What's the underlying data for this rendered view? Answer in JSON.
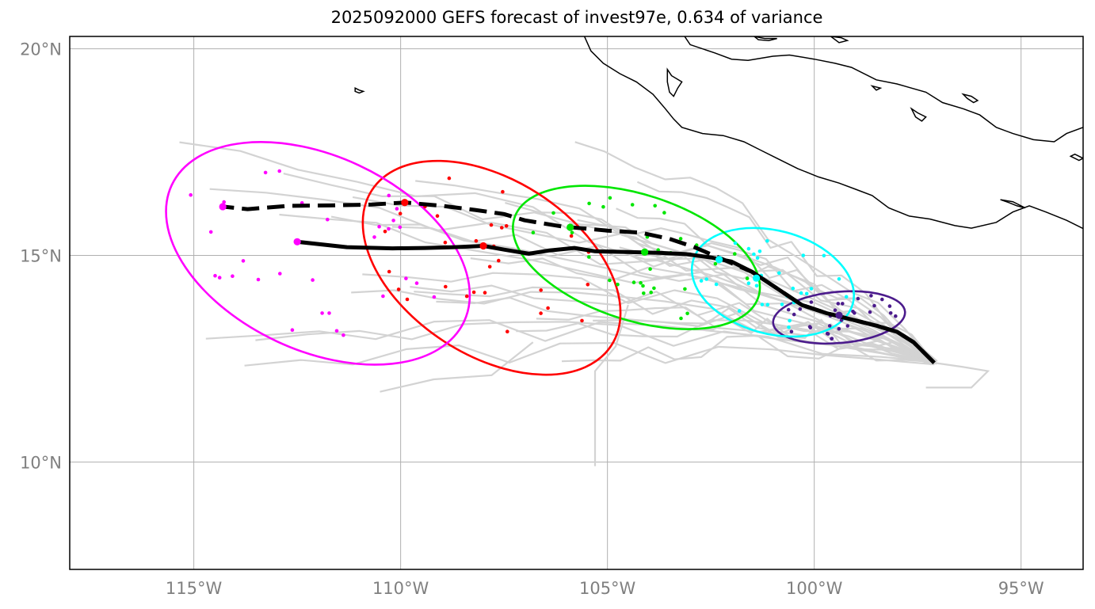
{
  "title": "2025092000 GEFS forecast of invest97e, 0.634 of variance",
  "map": {
    "lon_range": [
      -118,
      -93.5
    ],
    "lat_range": [
      7.4,
      20.3
    ],
    "x_ticks": [
      {
        "value": -115,
        "label": "115°W"
      },
      {
        "value": -110,
        "label": "110°W"
      },
      {
        "value": -105,
        "label": "105°W"
      },
      {
        "value": -100,
        "label": "100°W"
      },
      {
        "value": -95,
        "label": "95°W"
      }
    ],
    "y_ticks": [
      {
        "value": 20,
        "label": "20°N"
      },
      {
        "value": 15,
        "label": "15°N"
      },
      {
        "value": 10,
        "label": "10°N"
      }
    ],
    "grid": true
  },
  "colors": {
    "ensemble": "#d3d3d3",
    "mean_track": "#000000",
    "coast": "#000000",
    "grid": "#b0b0b0",
    "t1": "#4b1b8c",
    "t2": "#00ffff",
    "t3": "#00e600",
    "t4": "#ff0000",
    "t5": "#ff00ff"
  },
  "tracks": {
    "solid_mean": [
      [
        -97.1,
        12.4
      ],
      [
        -97.6,
        12.9
      ],
      [
        -98.0,
        13.15
      ],
      [
        -98.5,
        13.3
      ],
      [
        -99.1,
        13.45
      ],
      [
        -99.7,
        13.6
      ],
      [
        -100.3,
        13.8
      ],
      [
        -100.9,
        14.2
      ],
      [
        -101.5,
        14.6
      ],
      [
        -102.0,
        14.85
      ],
      [
        -102.5,
        14.95
      ],
      [
        -103.1,
        15.03
      ],
      [
        -103.7,
        15.06
      ],
      [
        -104.5,
        15.08
      ],
      [
        -105.3,
        15.1
      ],
      [
        -105.8,
        15.18
      ],
      [
        -106.4,
        15.12
      ],
      [
        -106.9,
        15.04
      ],
      [
        -107.5,
        15.14
      ],
      [
        -108.0,
        15.23
      ],
      [
        -108.7,
        15.2
      ],
      [
        -109.4,
        15.18
      ],
      [
        -110.2,
        15.17
      ],
      [
        -111.3,
        15.2
      ],
      [
        -112.5,
        15.33
      ]
    ],
    "dashed_mean": [
      [
        -97.1,
        12.4
      ],
      [
        -97.6,
        12.9
      ],
      [
        -98.0,
        13.15
      ],
      [
        -98.5,
        13.3
      ],
      [
        -99.1,
        13.45
      ],
      [
        -99.7,
        13.6
      ],
      [
        -100.3,
        13.8
      ],
      [
        -100.9,
        14.2
      ],
      [
        -101.5,
        14.6
      ],
      [
        -102.2,
        14.9
      ],
      [
        -102.9,
        15.2
      ],
      [
        -103.5,
        15.4
      ],
      [
        -104.2,
        15.55
      ],
      [
        -105.0,
        15.6
      ],
      [
        -106.1,
        15.7
      ],
      [
        -107.0,
        15.85
      ],
      [
        -107.5,
        16.0
      ],
      [
        -108.2,
        16.1
      ],
      [
        -109.0,
        16.2
      ],
      [
        -109.9,
        16.28
      ],
      [
        -110.7,
        16.23
      ],
      [
        -111.7,
        16.21
      ],
      [
        -112.7,
        16.2
      ],
      [
        -113.7,
        16.12
      ],
      [
        -114.3,
        16.18
      ]
    ]
  },
  "ellipses": [
    {
      "name": "t1",
      "lon": -99.4,
      "lat": 13.5,
      "rx_deg": 1.6,
      "ry_deg": 0.62,
      "angle": -5
    },
    {
      "name": "t2",
      "lon": -101.0,
      "lat": 14.35,
      "rx_deg": 2.0,
      "ry_deg": 1.25,
      "angle": 15
    },
    {
      "name": "t3",
      "lon": -104.3,
      "lat": 14.95,
      "rx_deg": 3.1,
      "ry_deg": 1.52,
      "angle": 18
    },
    {
      "name": "t4",
      "lon": -107.8,
      "lat": 14.7,
      "rx_deg": 3.45,
      "ry_deg": 2.12,
      "angle": 33
    },
    {
      "name": "t5",
      "lon": -112.0,
      "lat": 15.05,
      "rx_deg": 3.9,
      "ry_deg": 2.35,
      "angle": 25
    }
  ]
}
